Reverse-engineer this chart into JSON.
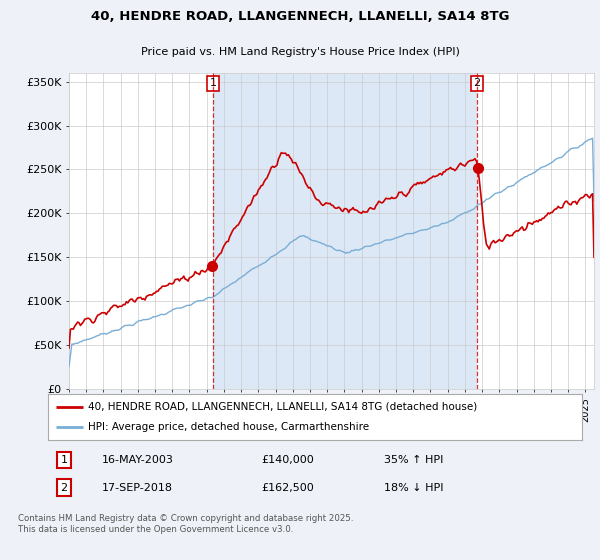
{
  "title": "40, HENDRE ROAD, LLANGENNECH, LLANELLI, SA14 8TG",
  "subtitle": "Price paid vs. HM Land Registry's House Price Index (HPI)",
  "ylabel_ticks": [
    "£0",
    "£50K",
    "£100K",
    "£150K",
    "£200K",
    "£250K",
    "£300K",
    "£350K"
  ],
  "ylim": [
    0,
    360000
  ],
  "xlim_start": 1995.0,
  "xlim_end": 2025.5,
  "background_color": "#eef2f8",
  "plot_bg_color": "#ffffff",
  "shade_color": "#dce8f5",
  "grid_color": "#cccccc",
  "red_color": "#cc0000",
  "blue_color": "#7aaed6",
  "transaction1": {
    "date": "16-MAY-2003",
    "price": 140000,
    "pct": "35% ↑ HPI",
    "label": "1"
  },
  "transaction2": {
    "date": "17-SEP-2018",
    "price": 162500,
    "pct": "18% ↓ HPI",
    "label": "2"
  },
  "vline1_x": 2003.37,
  "vline2_x": 2018.71,
  "legend_line1": "40, HENDRE ROAD, LLANGENNECH, LLANELLI, SA14 8TG (detached house)",
  "legend_line2": "HPI: Average price, detached house, Carmarthenshire",
  "footnote": "Contains HM Land Registry data © Crown copyright and database right 2025.\nThis data is licensed under the Open Government Licence v3.0."
}
